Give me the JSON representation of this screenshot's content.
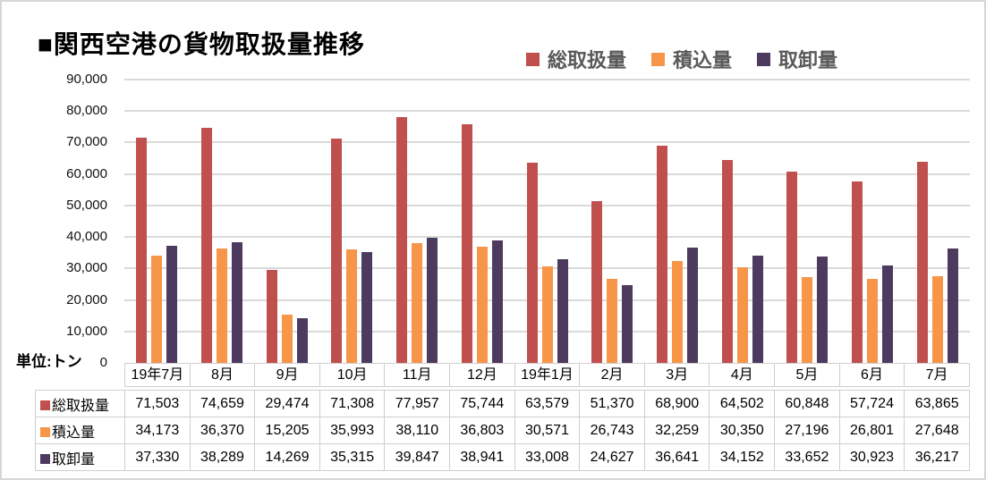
{
  "title": "■関西空港の貨物取扱量推移",
  "unit_label": "単位:トン",
  "colors": {
    "series_total": "#c0504e",
    "series_loaded": "#f79549",
    "series_unloaded": "#4c3a5f",
    "gridline": "#dadada",
    "cell_border": "#d0cece",
    "legend_text": "#595959"
  },
  "legend": {
    "items": [
      {
        "label": "総取扱量",
        "color": "#c0504e"
      },
      {
        "label": "積込量",
        "color": "#f79549"
      },
      {
        "label": "取卸量",
        "color": "#4c3a5f"
      }
    ]
  },
  "chart_data": {
    "type": "bar",
    "title": "関西空港の貨物取扱量推移",
    "unit": "トン",
    "categories": [
      "19年7月",
      "8月",
      "9月",
      "10月",
      "11月",
      "12月",
      "19年1月",
      "2月",
      "3月",
      "4月",
      "5月",
      "6月",
      "7月"
    ],
    "series": [
      {
        "name": "総取扱量",
        "color": "#c0504e",
        "values": [
          71503,
          74659,
          29474,
          71308,
          77957,
          75744,
          63579,
          51370,
          68900,
          64502,
          60848,
          57724,
          63865
        ]
      },
      {
        "name": "積込量",
        "color": "#f79549",
        "values": [
          34173,
          36370,
          15205,
          35993,
          38110,
          36803,
          30571,
          26743,
          32259,
          30350,
          27196,
          26801,
          27648
        ]
      },
      {
        "name": "取卸量",
        "color": "#4c3a5f",
        "values": [
          37330,
          38289,
          14269,
          35315,
          39847,
          38941,
          33008,
          24627,
          36641,
          34152,
          33652,
          30923,
          36217
        ]
      }
    ],
    "ylim": [
      0,
      90000
    ],
    "ytick_step": 10000,
    "y_tick_labels": [
      "0",
      "10,000",
      "20,000",
      "30,000",
      "40,000",
      "50,000",
      "60,000",
      "70,000",
      "80,000",
      "90,000"
    ],
    "grid": true,
    "legend_position": "top-right"
  },
  "table": {
    "row_headers": [
      "総取扱量",
      "積込量",
      "取卸量"
    ],
    "column_headers": [
      "19年7月",
      "8月",
      "9月",
      "10月",
      "11月",
      "12月",
      "19年1月",
      "2月",
      "3月",
      "4月",
      "5月",
      "6月",
      "7月"
    ],
    "rows": [
      [
        "71,503",
        "74,659",
        "29,474",
        "71,308",
        "77,957",
        "75,744",
        "63,579",
        "51,370",
        "68,900",
        "64,502",
        "60,848",
        "57,724",
        "63,865"
      ],
      [
        "34,173",
        "36,370",
        "15,205",
        "35,993",
        "38,110",
        "36,803",
        "30,571",
        "26,743",
        "32,259",
        "30,350",
        "27,196",
        "26,801",
        "27,648"
      ],
      [
        "37,330",
        "38,289",
        "14,269",
        "35,315",
        "39,847",
        "38,941",
        "33,008",
        "24,627",
        "36,641",
        "34,152",
        "33,652",
        "30,923",
        "36,217"
      ]
    ]
  }
}
